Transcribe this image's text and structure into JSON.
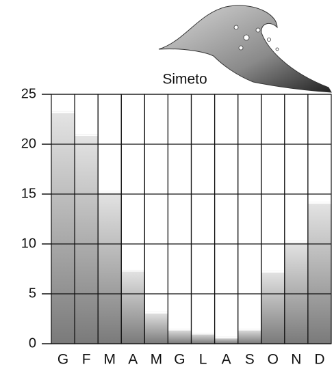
{
  "chart_data": {
    "type": "bar",
    "title": "Simeto",
    "categories": [
      "G",
      "F",
      "M",
      "A",
      "M",
      "G",
      "L",
      "A",
      "S",
      "O",
      "N",
      "D"
    ],
    "values": [
      23.3,
      21.0,
      15.3,
      7.4,
      3.2,
      1.5,
      1.1,
      0.7,
      1.5,
      7.3,
      10.3,
      14.2
    ],
    "color": "#7a7a7a",
    "ylim": [
      0,
      25
    ],
    "yticks": [
      0,
      5,
      10,
      15,
      20,
      25
    ],
    "grid": true
  }
}
